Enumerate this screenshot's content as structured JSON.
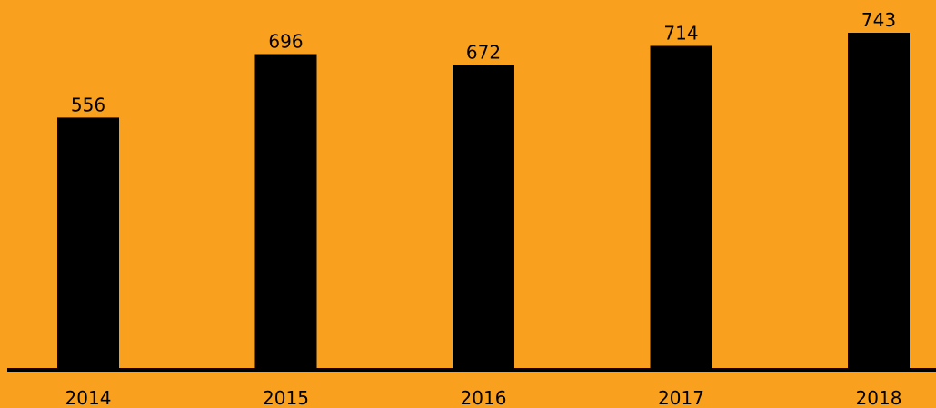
{
  "colors": {
    "background": "#f9a11e",
    "bar": "#000000",
    "axis": "#000000",
    "text": "#000000"
  },
  "chart_data": {
    "type": "bar",
    "categories": [
      "2014",
      "2015",
      "2016",
      "2017",
      "2018"
    ],
    "values": [
      556,
      696,
      672,
      714,
      743
    ],
    "data_labels": [
      "556",
      "696",
      "672",
      "714",
      "743"
    ],
    "title": "",
    "xlabel": "",
    "ylabel": "",
    "ylim": [
      0,
      760
    ],
    "grid": false,
    "legend": "none",
    "value_labels_position": "above bars"
  }
}
